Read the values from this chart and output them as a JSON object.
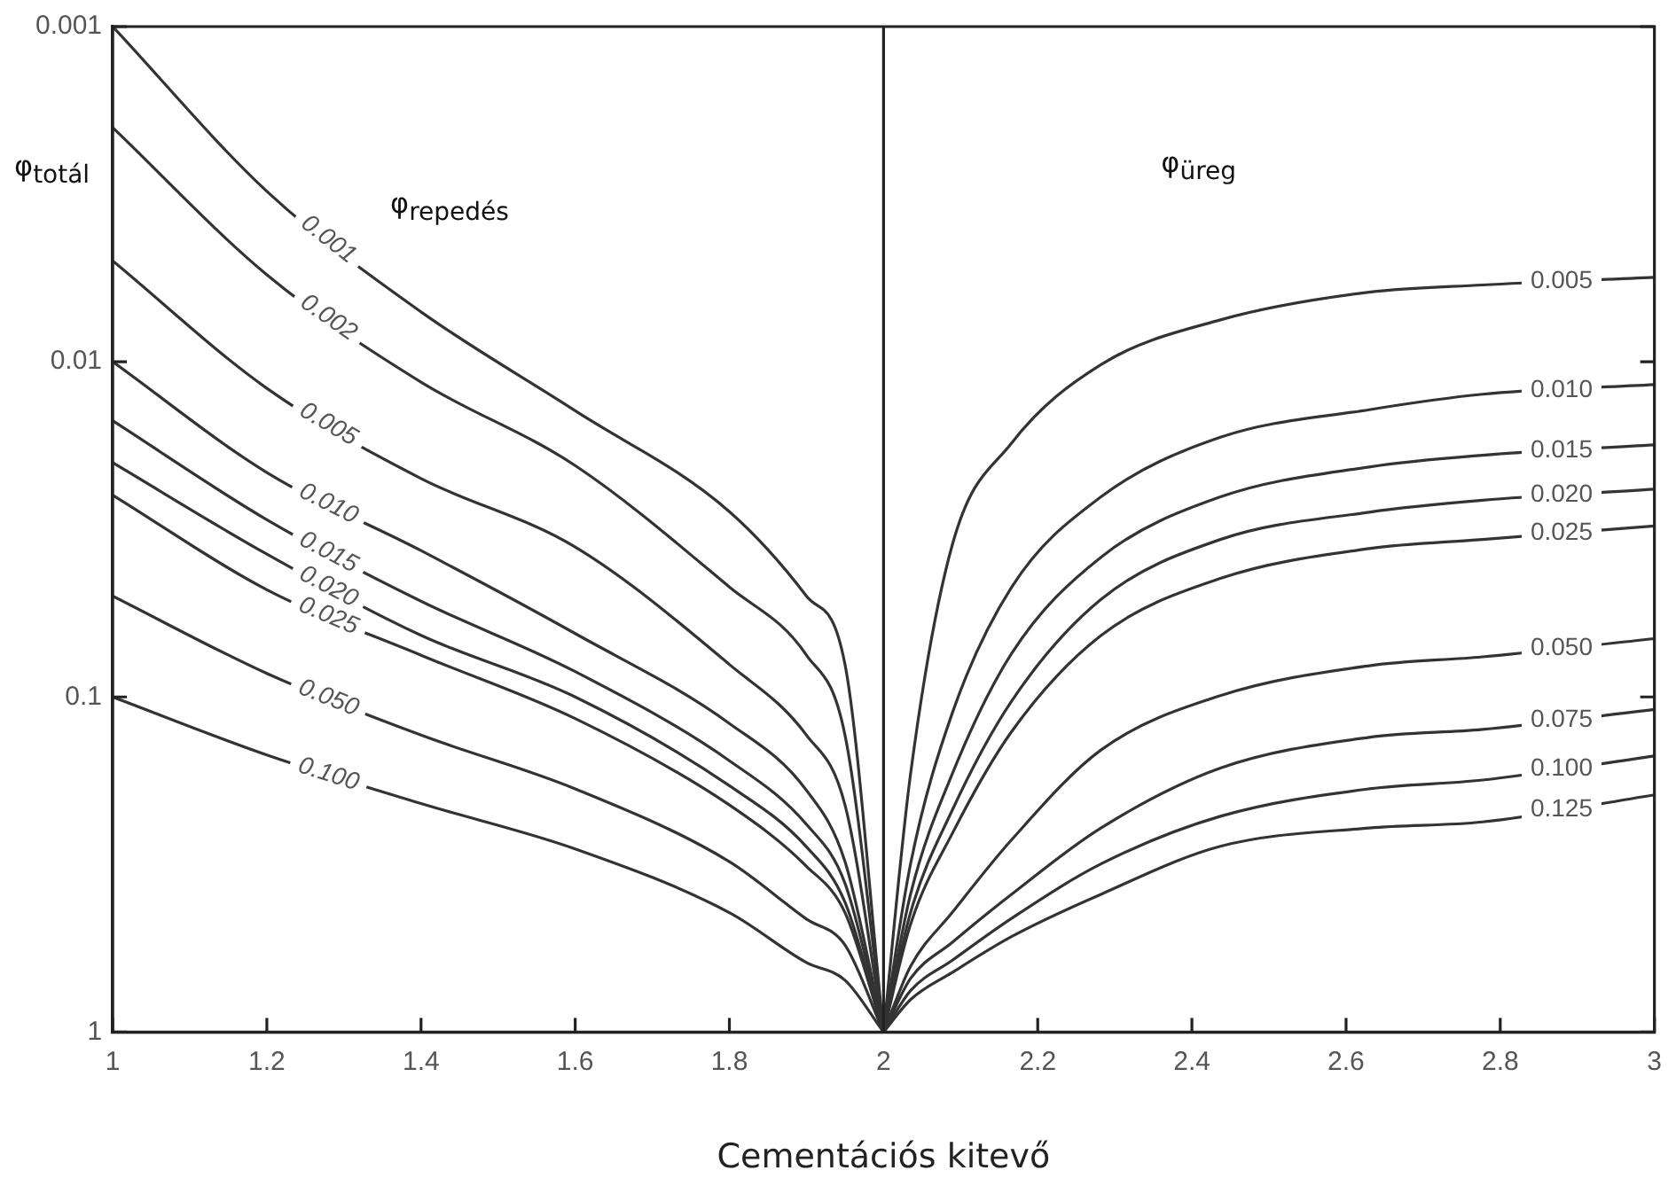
{
  "chart_data": {
    "type": "line",
    "xlabel": "Cementációs kitevő",
    "ylabel": "φ$_{totál}$",
    "log": true,
    "xlim": [
      1,
      3
    ],
    "xticks": [
      1,
      1.2,
      1.4,
      1.6,
      1.8,
      2,
      2.2,
      2.4,
      2.6,
      2.8,
      3
    ],
    "ylim": [
      1,
      0.001
    ],
    "yticks": [
      0.001,
      0.01,
      0.1,
      1
    ],
    "annotations": [
      "φ$_{repedés}$",
      "φ$_{üreg}$"
    ],
    "ref_lines": [
      {
        "axis": "x",
        "value": 2,
        "color": "#222222"
      }
    ],
    "legend": false,
    "series": [
      {
        "name": "0.001",
        "color": "#333333",
        "x": [
          1,
          1.2,
          1.4,
          1.6,
          1.8,
          1.9,
          1.95,
          2
        ],
        "values": [
          0.001,
          0.0031,
          0.0071,
          0.014,
          0.028,
          0.05,
          0.08,
          1
        ]
      },
      {
        "name": "0.002",
        "color": "#333333",
        "x": [
          1,
          1.2,
          1.4,
          1.6,
          1.8,
          1.9,
          1.95,
          2
        ],
        "values": [
          0.002,
          0.0055,
          0.0115,
          0.0204,
          0.047,
          0.075,
          0.13,
          1
        ]
      },
      {
        "name": "0.005",
        "color": "#333333",
        "x": [
          1,
          1.2,
          1.4,
          1.6,
          1.8,
          1.9,
          1.95,
          2
        ],
        "values": [
          0.005,
          0.012,
          0.0223,
          0.0357,
          0.08,
          0.13,
          0.21,
          1
        ]
      },
      {
        "name": "0.010",
        "color": "#333333",
        "x": [
          1,
          1.2,
          1.4,
          1.6,
          1.8,
          1.9,
          1.95,
          2
        ],
        "values": [
          0.01,
          0.0214,
          0.0366,
          0.0647,
          0.12,
          0.19,
          0.31,
          1
        ]
      },
      {
        "name": "0.015",
        "color": "#333333",
        "x": [
          1,
          1.2,
          1.4,
          1.6,
          1.8,
          1.9,
          1.95,
          2
        ],
        "values": [
          0.015,
          0.0296,
          0.0518,
          0.084,
          0.155,
          0.24,
          0.36,
          1
        ]
      },
      {
        "name": "0.020",
        "color": "#333333",
        "x": [
          1,
          1.2,
          1.4,
          1.6,
          1.8,
          1.9,
          1.95,
          2
        ],
        "values": [
          0.02,
          0.0375,
          0.0655,
          0.1,
          0.184,
          0.28,
          0.41,
          1
        ]
      },
      {
        "name": "0.025",
        "color": "#333333",
        "x": [
          1,
          1.2,
          1.4,
          1.6,
          1.8,
          1.9,
          1.95,
          2
        ],
        "values": [
          0.025,
          0.0479,
          0.0751,
          0.116,
          0.21,
          0.32,
          0.44,
          1
        ]
      },
      {
        "name": "0.050",
        "color": "#333333",
        "x": [
          1,
          1.2,
          1.4,
          1.6,
          1.8,
          1.9,
          1.95,
          2
        ],
        "values": [
          0.05,
          0.0851,
          0.13,
          0.188,
          0.31,
          0.46,
          0.55,
          1
        ]
      },
      {
        "name": "0.100",
        "color": "#333333",
        "x": [
          1,
          1.2,
          1.4,
          1.6,
          1.8,
          1.9,
          1.95,
          2
        ],
        "values": [
          0.1,
          0.149,
          0.208,
          0.284,
          0.44,
          0.62,
          0.7,
          1
        ]
      },
      {
        "name": "0.005",
        "color": "#333333",
        "x": [
          2,
          2.035,
          2.089,
          2.166,
          2.282,
          2.437,
          2.63,
          2.777,
          3
        ],
        "values": [
          1,
          0.17,
          0.0353,
          0.0175,
          0.0102,
          0.0075,
          0.0062,
          0.0059,
          0.0056
        ]
      },
      {
        "name": "0.010",
        "color": "#333333",
        "x": [
          2,
          2.035,
          2.089,
          2.166,
          2.282,
          2.437,
          2.63,
          2.777,
          3
        ],
        "values": [
          1,
          0.315,
          0.112,
          0.0471,
          0.0253,
          0.0168,
          0.0139,
          0.0125,
          0.0117
        ]
      },
      {
        "name": "0.015",
        "color": "#333333",
        "x": [
          2,
          2.035,
          2.089,
          2.166,
          2.282,
          2.437,
          2.63,
          2.777,
          3
        ],
        "values": [
          1,
          0.388,
          0.17,
          0.0743,
          0.0383,
          0.0253,
          0.0206,
          0.019,
          0.0177
        ]
      },
      {
        "name": "0.020",
        "color": "#333333",
        "x": [
          2,
          2.035,
          2.089,
          2.166,
          2.282,
          2.437,
          2.63,
          2.777,
          3
        ],
        "values": [
          1,
          0.44,
          0.218,
          0.103,
          0.0512,
          0.0339,
          0.0281,
          0.0259,
          0.024
        ]
      },
      {
        "name": "0.025",
        "color": "#333333",
        "x": [
          2,
          2.035,
          2.089,
          2.166,
          2.282,
          2.437,
          2.63,
          2.777,
          3
        ],
        "values": [
          1,
          0.477,
          0.256,
          0.127,
          0.0656,
          0.0443,
          0.0361,
          0.0339,
          0.0309
        ]
      },
      {
        "name": "0.050",
        "color": "#333333",
        "x": [
          2,
          2.035,
          2.089,
          2.166,
          2.282,
          2.437,
          2.63,
          2.777,
          3
        ],
        "values": [
          1,
          0.637,
          0.44,
          0.267,
          0.144,
          0.0991,
          0.0807,
          0.0759,
          0.067
        ]
      },
      {
        "name": "0.075",
        "color": "#333333",
        "x": [
          2,
          2.035,
          2.089,
          2.166,
          2.282,
          2.437,
          2.63,
          2.777,
          3
        ],
        "values": [
          1,
          0.692,
          0.54,
          0.388,
          0.246,
          0.163,
          0.132,
          0.125,
          0.109
        ]
      },
      {
        "name": "0.100",
        "color": "#333333",
        "x": [
          2,
          2.035,
          2.089,
          2.166,
          2.282,
          2.437,
          2.63,
          2.777,
          3
        ],
        "values": [
          1,
          0.752,
          0.611,
          0.458,
          0.315,
          0.227,
          0.188,
          0.177,
          0.15
        ]
      },
      {
        "name": "0.125",
        "color": "#333333",
        "x": [
          2,
          2.035,
          2.089,
          2.166,
          2.282,
          2.437,
          2.63,
          2.777,
          3
        ],
        "values": [
          1,
          0.8,
          0.664,
          0.519,
          0.388,
          0.279,
          0.246,
          0.236,
          0.196
        ]
      }
    ]
  }
}
